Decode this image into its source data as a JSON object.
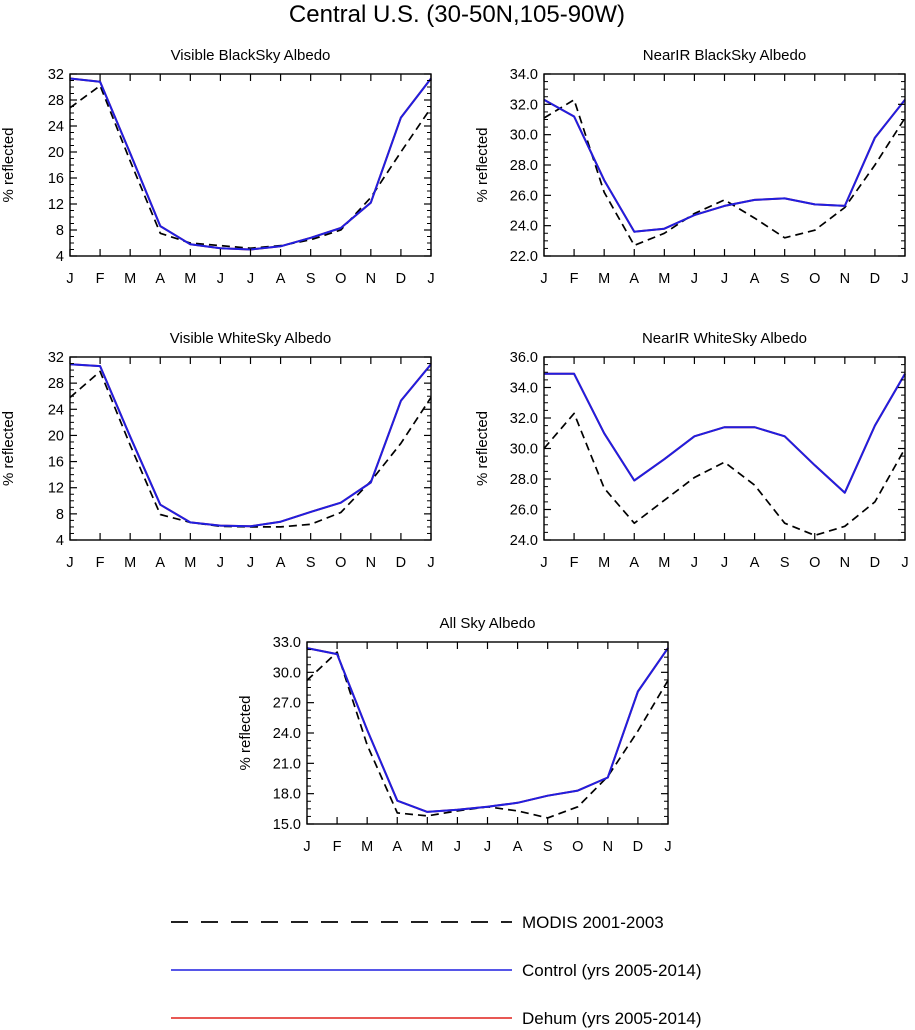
{
  "figure_title": "Central U.S. (30-50N,105-90W)",
  "colors": {
    "modis": "#000000",
    "control": "#1f1fe0",
    "dehum": "#e0201c",
    "axis": "#000000"
  },
  "legend": [
    {
      "key": "modis",
      "label": "MODIS 2001-2003",
      "style": "dashed"
    },
    {
      "key": "control",
      "label": "Control (yrs 2005-2014)",
      "style": "solid"
    },
    {
      "key": "dehum",
      "label": "Dehum (yrs 2005-2014)",
      "style": "solid"
    }
  ],
  "chart_data": [
    {
      "type": "line",
      "title": "Visible BlackSky Albedo",
      "xlabel": "",
      "ylabel": "% reflected",
      "categories": [
        "J",
        "F",
        "M",
        "A",
        "M",
        "J",
        "J",
        "A",
        "S",
        "O",
        "N",
        "D",
        "J"
      ],
      "ylim": [
        4,
        32
      ],
      "yticks": [
        "4",
        "8",
        "12",
        "16",
        "20",
        "24",
        "28",
        "32"
      ],
      "series": [
        {
          "name": "MODIS 2001-2003",
          "key": "modis",
          "values": [
            26.8,
            30.2,
            18.6,
            7.5,
            6.0,
            5.6,
            5.2,
            5.6,
            6.5,
            8.0,
            13.0,
            20.0,
            26.8
          ]
        },
        {
          "name": "Control (yrs 2005-2014)",
          "key": "control",
          "values": [
            31.3,
            30.8,
            19.8,
            8.6,
            5.8,
            5.2,
            5.0,
            5.5,
            6.8,
            8.3,
            12.2,
            25.3,
            31.3
          ]
        },
        {
          "name": "Dehum (yrs 2005-2014)",
          "key": "dehum",
          "values": [
            31.3,
            30.8,
            19.8,
            8.6,
            5.8,
            5.2,
            5.0,
            5.5,
            6.8,
            8.3,
            12.2,
            25.3,
            31.3
          ]
        }
      ]
    },
    {
      "type": "line",
      "title": "NearIR BlackSky Albedo",
      "xlabel": "",
      "ylabel": "% reflected",
      "categories": [
        "J",
        "F",
        "M",
        "A",
        "M",
        "J",
        "J",
        "A",
        "S",
        "O",
        "N",
        "D",
        "J"
      ],
      "ylim": [
        22,
        34
      ],
      "yticks": [
        "22.0",
        "24.0",
        "26.0",
        "28.0",
        "30.0",
        "32.0",
        "34.0"
      ],
      "series": [
        {
          "name": "MODIS 2001-2003",
          "key": "modis",
          "values": [
            31.1,
            32.3,
            26.2,
            22.7,
            23.5,
            24.8,
            25.7,
            24.5,
            23.2,
            23.7,
            25.2,
            28.0,
            31.1
          ]
        },
        {
          "name": "Control (yrs 2005-2014)",
          "key": "control",
          "values": [
            32.3,
            31.2,
            27.0,
            23.6,
            23.8,
            24.7,
            25.3,
            25.7,
            25.8,
            25.4,
            25.3,
            29.8,
            32.3
          ]
        },
        {
          "name": "Dehum (yrs 2005-2014)",
          "key": "dehum",
          "values": [
            32.3,
            31.2,
            27.0,
            23.6,
            23.8,
            24.7,
            25.3,
            25.7,
            25.8,
            25.4,
            25.3,
            29.8,
            32.3
          ]
        }
      ]
    },
    {
      "type": "line",
      "title": "Visible WhiteSky Albedo",
      "xlabel": "",
      "ylabel": "% reflected",
      "categories": [
        "J",
        "F",
        "M",
        "A",
        "M",
        "J",
        "J",
        "A",
        "S",
        "O",
        "N",
        "D",
        "J"
      ],
      "ylim": [
        4,
        32
      ],
      "yticks": [
        "4",
        "8",
        "12",
        "16",
        "20",
        "24",
        "28",
        "32"
      ],
      "series": [
        {
          "name": "MODIS 2001-2003",
          "key": "modis",
          "values": [
            25.8,
            29.8,
            18.5,
            7.9,
            6.7,
            6.1,
            6.0,
            6.0,
            6.4,
            8.2,
            13.0,
            18.8,
            25.8
          ]
        },
        {
          "name": "Control (yrs 2005-2014)",
          "key": "control",
          "values": [
            30.9,
            30.6,
            19.8,
            9.4,
            6.7,
            6.2,
            6.1,
            6.8,
            8.3,
            9.7,
            12.8,
            25.3,
            30.9
          ]
        },
        {
          "name": "Dehum (yrs 2005-2014)",
          "key": "dehum",
          "values": [
            30.9,
            30.6,
            19.8,
            9.4,
            6.7,
            6.2,
            6.1,
            6.8,
            8.3,
            9.7,
            12.8,
            25.3,
            30.9
          ]
        }
      ]
    },
    {
      "type": "line",
      "title": "NearIR WhiteSky Albedo",
      "xlabel": "",
      "ylabel": "% reflected",
      "categories": [
        "J",
        "F",
        "M",
        "A",
        "M",
        "J",
        "J",
        "A",
        "S",
        "O",
        "N",
        "D",
        "J"
      ],
      "ylim": [
        24,
        36
      ],
      "yticks": [
        "24.0",
        "26.0",
        "28.0",
        "30.0",
        "32.0",
        "34.0",
        "36.0"
      ],
      "series": [
        {
          "name": "MODIS 2001-2003",
          "key": "modis",
          "values": [
            30.0,
            32.3,
            27.4,
            25.1,
            26.6,
            28.1,
            29.1,
            27.6,
            25.1,
            24.3,
            24.9,
            26.5,
            30.0
          ]
        },
        {
          "name": "Control (yrs 2005-2014)",
          "key": "control",
          "values": [
            34.9,
            34.9,
            31.0,
            27.9,
            29.3,
            30.8,
            31.4,
            31.4,
            30.8,
            28.9,
            27.1,
            31.5,
            34.9
          ]
        },
        {
          "name": "Dehum (yrs 2005-2014)",
          "key": "dehum",
          "values": [
            34.9,
            34.9,
            31.0,
            27.9,
            29.3,
            30.8,
            31.4,
            31.4,
            30.8,
            28.9,
            27.1,
            31.5,
            34.9
          ]
        }
      ]
    },
    {
      "type": "line",
      "title": "All Sky Albedo",
      "xlabel": "",
      "ylabel": "% reflected",
      "categories": [
        "J",
        "F",
        "M",
        "A",
        "M",
        "J",
        "J",
        "A",
        "S",
        "O",
        "N",
        "D",
        "J"
      ],
      "ylim": [
        15,
        33
      ],
      "yticks": [
        "15.0",
        "18.0",
        "21.0",
        "24.0",
        "27.0",
        "30.0",
        "33.0"
      ],
      "series": [
        {
          "name": "MODIS 2001-2003",
          "key": "modis",
          "values": [
            29.2,
            32.0,
            22.8,
            16.1,
            15.8,
            16.3,
            16.7,
            16.3,
            15.6,
            16.7,
            19.7,
            24.2,
            29.2
          ]
        },
        {
          "name": "Control (yrs 2005-2014)",
          "key": "control",
          "values": [
            32.4,
            31.8,
            24.3,
            17.3,
            16.2,
            16.4,
            16.7,
            17.1,
            17.8,
            18.3,
            19.6,
            28.1,
            32.4
          ]
        },
        {
          "name": "Dehum (yrs 2005-2014)",
          "key": "dehum",
          "values": [
            32.4,
            31.8,
            24.3,
            17.3,
            16.2,
            16.4,
            16.7,
            17.1,
            17.8,
            18.3,
            19.6,
            28.1,
            32.4
          ]
        }
      ]
    }
  ]
}
